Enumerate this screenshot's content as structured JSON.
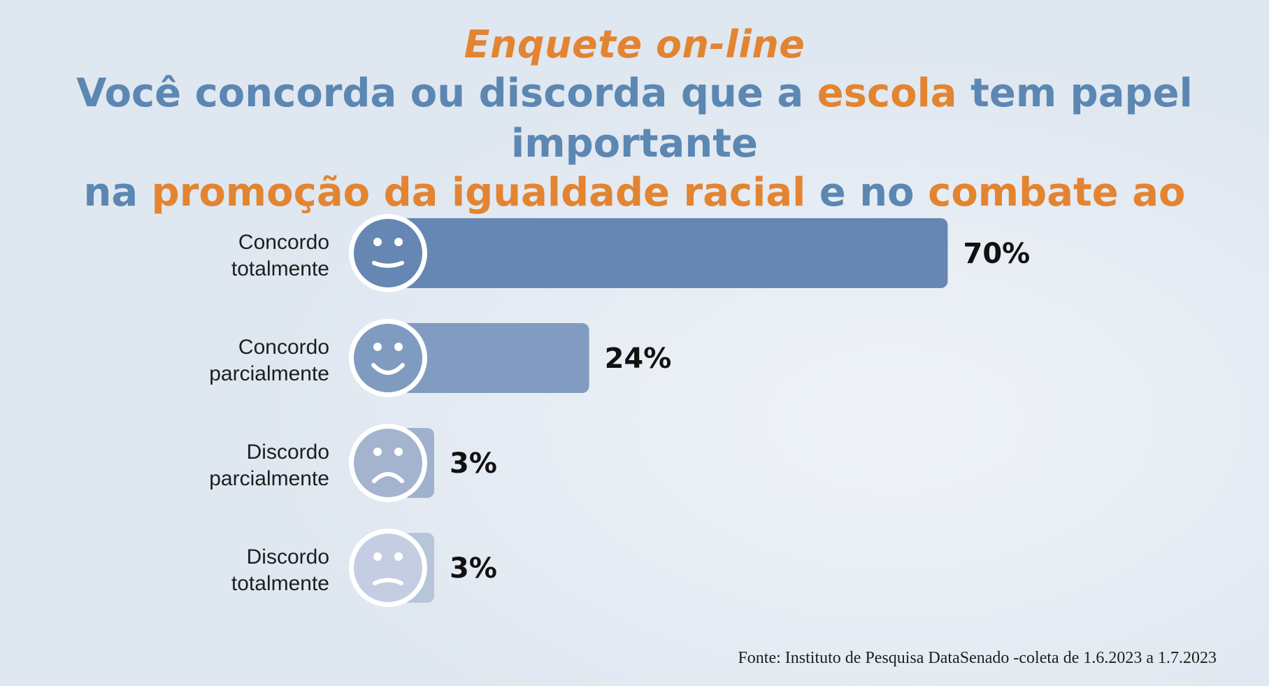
{
  "header": {
    "kicker": "Enquete on-line",
    "question_line1": [
      {
        "text": "Você concorda ou discorda que a ",
        "highlight": false
      },
      {
        "text": "escola",
        "highlight": true
      },
      {
        "text": " tem papel importante",
        "highlight": false
      }
    ],
    "question_line2": [
      {
        "text": "na ",
        "highlight": false
      },
      {
        "text": "promoção da igualdade racial",
        "highlight": true
      },
      {
        "text": " e no ",
        "highlight": false
      },
      {
        "text": "combate ao racismo",
        "highlight": true
      },
      {
        "text": "?",
        "highlight": false
      }
    ]
  },
  "chart_data": {
    "type": "bar",
    "orientation": "horizontal",
    "categories": [
      [
        "Concordo",
        "totalmente"
      ],
      [
        "Concordo",
        "parcialmente"
      ],
      [
        "Discordo",
        "parcialmente"
      ],
      [
        "Discordo",
        "totalmente"
      ]
    ],
    "values": [
      70,
      24,
      3,
      3
    ],
    "value_labels": [
      "70%",
      "24%",
      "3%",
      "3%"
    ],
    "icons": [
      "big-smile-icon",
      "smile-icon",
      "frown-icon",
      "sad-icon"
    ],
    "colors": [
      "#6687b3",
      "#819cc0",
      "#a0b1cd",
      "#b7c5db"
    ],
    "face_colors": [
      "#6687b3",
      "#7f9bc0",
      "#a4b4cf",
      "#c5cde3"
    ],
    "xlim": [
      0,
      100
    ]
  },
  "source": "Fonte: Instituto de Pesquisa DataSenado -coleta de 1.6.2023 a 1.7.2023"
}
